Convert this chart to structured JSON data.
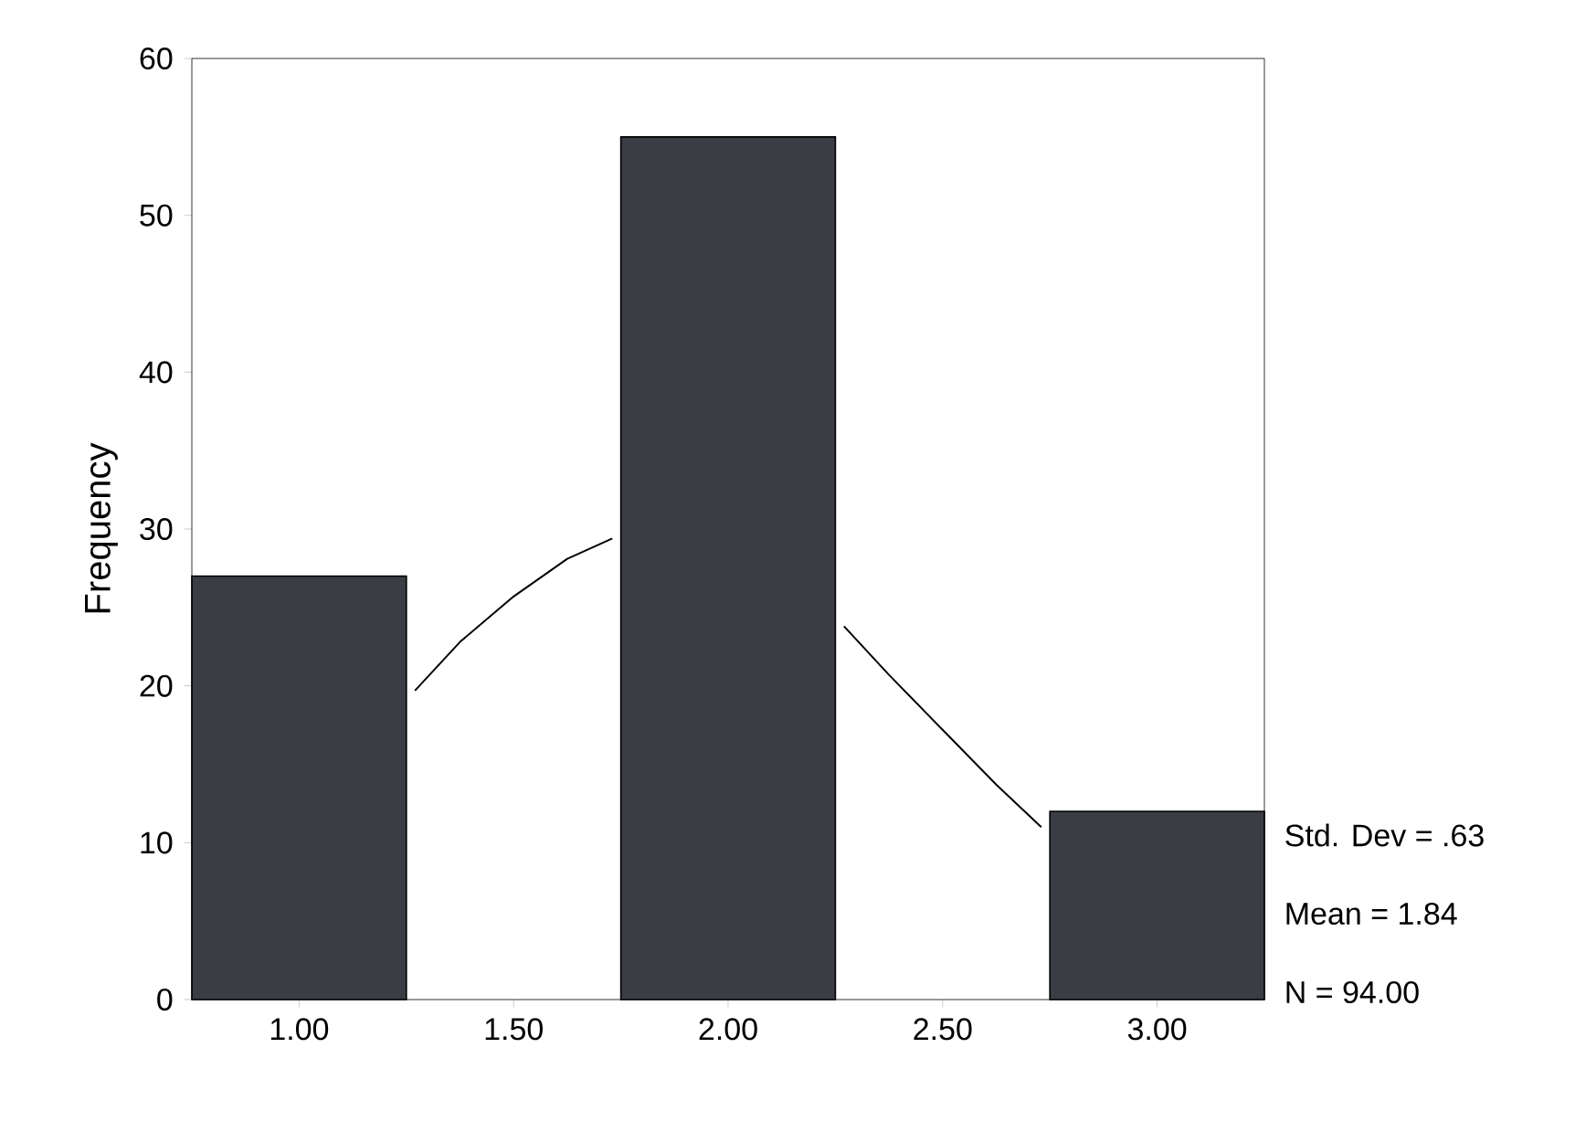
{
  "chart_data": {
    "type": "histogram",
    "ylabel": "Frequency",
    "bins": [
      0.75,
      1.25,
      1.75,
      2.25,
      2.75,
      3.25
    ],
    "values": [
      27,
      0,
      55,
      0,
      12
    ],
    "color": "#3a3d44",
    "series": [
      {
        "type": "line",
        "color": "#000000",
        "x": [
          1.27,
          1.375,
          1.5,
          1.625,
          1.73,
          2.0,
          2.27,
          2.375,
          2.5,
          2.625,
          2.73
        ],
        "values": [
          19.7,
          22.8,
          25.7,
          28.1,
          29.4,
          null,
          23.8,
          20.7,
          17.2,
          13.7,
          11.0
        ]
      }
    ],
    "xlim": [
      0.75,
      3.25
    ],
    "ylim": [
      0,
      60
    ],
    "xticks": [
      {
        "value": 1,
        "label": "1.00"
      },
      {
        "value": 1.5,
        "label": "1.50"
      },
      {
        "value": 2,
        "label": "2.00"
      },
      {
        "value": 2.5,
        "label": "2.50"
      },
      {
        "value": 3,
        "label": "3.00"
      }
    ],
    "yticks": [
      0,
      10,
      20,
      30,
      40,
      50,
      60
    ],
    "annotations": [
      "Std. Dev = .63",
      "Mean = 1.84",
      "N = 94.00"
    ]
  }
}
